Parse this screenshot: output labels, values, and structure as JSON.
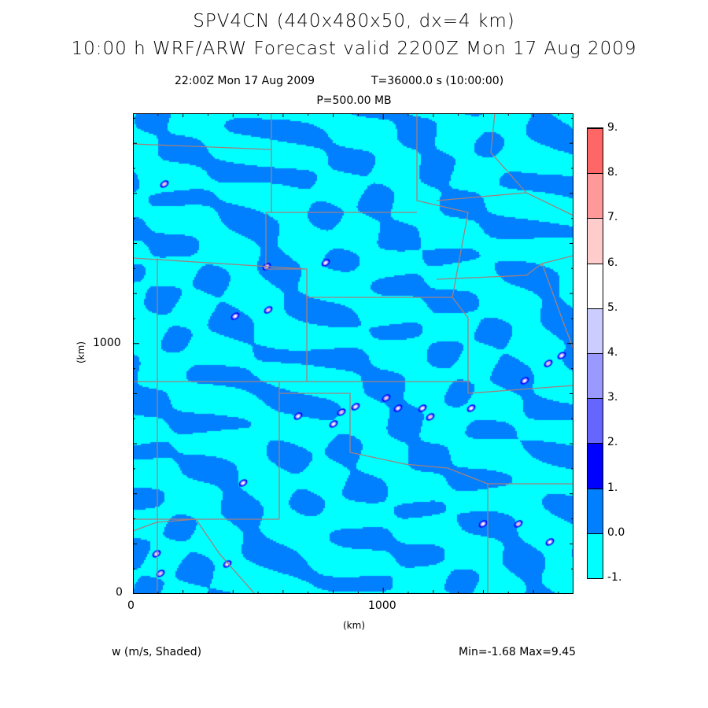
{
  "title": {
    "line1": "SPV4CN (440x480x50, dx=4 km)",
    "line2": "10:00 h WRF/ARW Forecast valid 2200Z Mon 17 Aug 2009"
  },
  "subtitle": {
    "time": "22:00Z Mon 17 Aug 2009",
    "elapsed": "T=36000.0 s (10:00:00)",
    "level": "P=500.00 MB"
  },
  "footer": {
    "field": "w (m/s, Shaded)",
    "range": "Min=-1.68 Max=9.45"
  },
  "chart_data": {
    "type": "heatmap",
    "title": "SPV4CN (440x480x50, dx=4 km)",
    "variable": "w (m/s, Shaded)",
    "xlabel": "(km)",
    "ylabel": "(km)",
    "xlim": [
      0,
      1760
    ],
    "ylim": [
      0,
      1920
    ],
    "x_ticks": [
      "0",
      "1000"
    ],
    "y_ticks": [
      "0",
      "1000"
    ],
    "min": -1.68,
    "max": 9.45,
    "colorbar": {
      "levels": [
        "-1.",
        "0.0",
        "1.",
        "2.",
        "3.",
        "4.",
        "5.",
        "6.",
        "7.",
        "8.",
        "9."
      ],
      "colors": [
        "#00ffff",
        "#0080ff",
        "#0000ff",
        "#6666ff",
        "#9999ff",
        "#ccccff",
        "#ffffff",
        "#ffcccc",
        "#ff9999",
        "#ff6666"
      ]
    },
    "border_color": "#a08080"
  }
}
